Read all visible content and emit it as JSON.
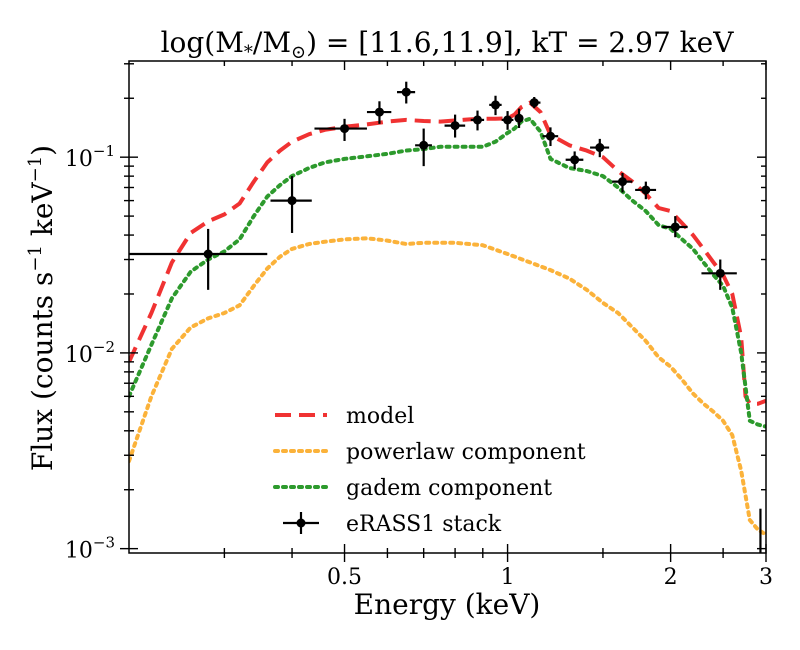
{
  "chart_data": {
    "type": "line",
    "title": "log(M*/M⊙) = [11.6,11.9], kT = 2.97 keV",
    "title_parts": {
      "prefix": "log(M",
      "star_sub": "*",
      "mid": "/M",
      "sun_sub": "⊙",
      "suffix": ") = [11.6,11.9], kT = 2.97 keV"
    },
    "xlabel": "Energy (keV)",
    "ylabel": "Flux (counts s⁻¹ keV⁻¹)",
    "ylabel_parts": {
      "prefix": "Flux (counts s",
      "exp1": "−1",
      "mid": " keV",
      "exp2": "−1",
      "suffix": ")"
    },
    "xscale": "log",
    "yscale": "log",
    "xlim": [
      0.2,
      3.0
    ],
    "ylim": [
      0.00095,
      0.31
    ],
    "xticks": [
      {
        "value": 0.5,
        "label": "0.5"
      },
      {
        "value": 1,
        "label": "1"
      },
      {
        "value": 2,
        "label": "2"
      },
      {
        "value": 3,
        "label": "3"
      }
    ],
    "yticks": [
      {
        "value": 0.001,
        "base": "10",
        "exp": "−3"
      },
      {
        "value": 0.01,
        "base": "10",
        "exp": "−2"
      },
      {
        "value": 0.1,
        "base": "10",
        "exp": "−1"
      }
    ],
    "legend_position": "lower-center",
    "series": [
      {
        "name": "model",
        "style": "dashed",
        "color": "#f03232",
        "x": [
          0.2,
          0.22,
          0.24,
          0.26,
          0.28,
          0.3,
          0.32,
          0.34,
          0.36,
          0.38,
          0.4,
          0.43,
          0.46,
          0.5,
          0.55,
          0.6,
          0.65,
          0.7,
          0.75,
          0.8,
          0.85,
          0.9,
          0.95,
          1.0,
          1.03,
          1.06,
          1.1,
          1.15,
          1.2,
          1.3,
          1.4,
          1.5,
          1.6,
          1.7,
          1.8,
          1.9,
          2.0,
          2.1,
          2.2,
          2.3,
          2.4,
          2.5,
          2.6,
          2.7,
          2.75,
          2.8,
          2.9,
          3.0
        ],
        "values": [
          0.009,
          0.016,
          0.029,
          0.041,
          0.047,
          0.051,
          0.058,
          0.075,
          0.094,
          0.108,
          0.12,
          0.131,
          0.138,
          0.143,
          0.147,
          0.152,
          0.155,
          0.153,
          0.152,
          0.154,
          0.156,
          0.157,
          0.157,
          0.158,
          0.165,
          0.18,
          0.19,
          0.17,
          0.13,
          0.115,
          0.108,
          0.1,
          0.085,
          0.075,
          0.065,
          0.055,
          0.053,
          0.046,
          0.04,
          0.034,
          0.029,
          0.025,
          0.02,
          0.012,
          0.006,
          0.0055,
          0.0055,
          0.0057
        ]
      },
      {
        "name": "powerlaw component",
        "style": "dotted",
        "color": "#fbb23a",
        "x": [
          0.2,
          0.22,
          0.24,
          0.26,
          0.28,
          0.3,
          0.32,
          0.34,
          0.36,
          0.38,
          0.4,
          0.43,
          0.46,
          0.5,
          0.55,
          0.6,
          0.65,
          0.7,
          0.8,
          0.9,
          1.0,
          1.1,
          1.2,
          1.3,
          1.4,
          1.5,
          1.6,
          1.7,
          1.8,
          1.9,
          2.0,
          2.1,
          2.2,
          2.3,
          2.4,
          2.5,
          2.6,
          2.7,
          2.8,
          2.9,
          3.0
        ],
        "values": [
          0.0028,
          0.006,
          0.0105,
          0.0135,
          0.015,
          0.016,
          0.0175,
          0.022,
          0.027,
          0.031,
          0.034,
          0.036,
          0.037,
          0.038,
          0.0385,
          0.0375,
          0.036,
          0.0365,
          0.0365,
          0.0355,
          0.032,
          0.029,
          0.0265,
          0.024,
          0.021,
          0.018,
          0.016,
          0.0135,
          0.0115,
          0.0095,
          0.0085,
          0.0073,
          0.0062,
          0.0055,
          0.005,
          0.0045,
          0.0038,
          0.0025,
          0.0014,
          0.00125,
          0.00118
        ]
      },
      {
        "name": "gadem component",
        "style": "dotted",
        "color": "#2d9a2d",
        "x": [
          0.2,
          0.22,
          0.24,
          0.26,
          0.28,
          0.3,
          0.32,
          0.34,
          0.36,
          0.38,
          0.4,
          0.43,
          0.46,
          0.5,
          0.55,
          0.6,
          0.65,
          0.7,
          0.75,
          0.8,
          0.85,
          0.9,
          0.95,
          1.0,
          1.03,
          1.06,
          1.1,
          1.15,
          1.2,
          1.3,
          1.4,
          1.5,
          1.6,
          1.7,
          1.8,
          1.9,
          2.0,
          2.1,
          2.2,
          2.3,
          2.4,
          2.5,
          2.6,
          2.7,
          2.8,
          2.9,
          3.0
        ],
        "values": [
          0.006,
          0.011,
          0.019,
          0.026,
          0.03,
          0.033,
          0.038,
          0.05,
          0.063,
          0.072,
          0.08,
          0.088,
          0.094,
          0.098,
          0.101,
          0.104,
          0.108,
          0.11,
          0.113,
          0.113,
          0.113,
          0.113,
          0.12,
          0.133,
          0.14,
          0.152,
          0.157,
          0.135,
          0.098,
          0.088,
          0.085,
          0.08,
          0.07,
          0.06,
          0.053,
          0.045,
          0.043,
          0.038,
          0.034,
          0.029,
          0.025,
          0.022,
          0.017,
          0.01,
          0.0045,
          0.0043,
          0.0042
        ]
      }
    ],
    "data_points": {
      "name": "eRASS1 stack",
      "color": "#000000",
      "points": [
        {
          "x": 0.28,
          "y": 0.032,
          "xlo": 0.2,
          "xhi": 0.36,
          "ylo": 0.021,
          "yhi": 0.043
        },
        {
          "x": 0.4,
          "y": 0.06,
          "xlo": 0.365,
          "xhi": 0.435,
          "ylo": 0.041,
          "yhi": 0.08
        },
        {
          "x": 0.5,
          "y": 0.14,
          "xlo": 0.44,
          "xhi": 0.55,
          "ylo": 0.121,
          "yhi": 0.157
        },
        {
          "x": 0.58,
          "y": 0.17,
          "xlo": 0.55,
          "xhi": 0.61,
          "ylo": 0.148,
          "yhi": 0.193
        },
        {
          "x": 0.65,
          "y": 0.215,
          "xlo": 0.625,
          "xhi": 0.675,
          "ylo": 0.188,
          "yhi": 0.243
        },
        {
          "x": 0.7,
          "y": 0.115,
          "xlo": 0.675,
          "xhi": 0.725,
          "ylo": 0.09,
          "yhi": 0.14
        },
        {
          "x": 0.8,
          "y": 0.145,
          "xlo": 0.765,
          "xhi": 0.835,
          "ylo": 0.126,
          "yhi": 0.165
        },
        {
          "x": 0.88,
          "y": 0.155,
          "xlo": 0.855,
          "xhi": 0.905,
          "ylo": 0.137,
          "yhi": 0.173
        },
        {
          "x": 0.95,
          "y": 0.185,
          "xlo": 0.925,
          "xhi": 0.975,
          "ylo": 0.164,
          "yhi": 0.206
        },
        {
          "x": 1.0,
          "y": 0.155,
          "xlo": 0.975,
          "xhi": 1.025,
          "ylo": 0.138,
          "yhi": 0.172
        },
        {
          "x": 1.05,
          "y": 0.158,
          "xlo": 1.03,
          "xhi": 1.07,
          "ylo": 0.141,
          "yhi": 0.177
        },
        {
          "x": 1.12,
          "y": 0.19,
          "xlo": 1.1,
          "xhi": 1.15,
          "ylo": 0.178,
          "yhi": 0.203
        },
        {
          "x": 1.2,
          "y": 0.128,
          "xlo": 1.16,
          "xhi": 1.24,
          "ylo": 0.114,
          "yhi": 0.142
        },
        {
          "x": 1.33,
          "y": 0.097,
          "xlo": 1.28,
          "xhi": 1.38,
          "ylo": 0.087,
          "yhi": 0.107
        },
        {
          "x": 1.48,
          "y": 0.112,
          "xlo": 1.42,
          "xhi": 1.54,
          "ylo": 0.1,
          "yhi": 0.124
        },
        {
          "x": 1.63,
          "y": 0.075,
          "xlo": 1.56,
          "xhi": 1.7,
          "ylo": 0.066,
          "yhi": 0.083
        },
        {
          "x": 1.8,
          "y": 0.068,
          "xlo": 1.72,
          "xhi": 1.88,
          "ylo": 0.061,
          "yhi": 0.075
        },
        {
          "x": 2.04,
          "y": 0.044,
          "xlo": 1.93,
          "xhi": 2.15,
          "ylo": 0.039,
          "yhi": 0.05
        },
        {
          "x": 2.47,
          "y": 0.0255,
          "xlo": 2.28,
          "xhi": 2.65,
          "ylo": 0.021,
          "yhi": 0.03
        },
        {
          "x": 2.93,
          "y": 0.0009,
          "xlo": 2.93,
          "xhi": 2.93,
          "ylo": 0.0009,
          "yhi": 0.0016
        }
      ]
    }
  }
}
